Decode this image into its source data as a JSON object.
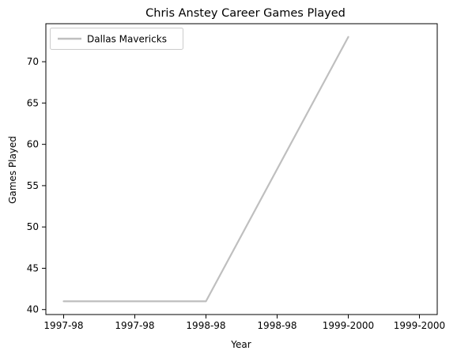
{
  "chart_data": {
    "type": "line",
    "title": "Chris Anstey Career Games Played",
    "xlabel": "Year",
    "ylabel": "Games Played",
    "categories": [
      "1997-98",
      "1997-98",
      "1998-98",
      "1998-98",
      "1999-2000",
      "1999-2000"
    ],
    "series": [
      {
        "name": "Dallas Mavericks",
        "x": [
          0,
          2,
          4
        ],
        "values": [
          41,
          41,
          73
        ],
        "color": "#bfbfbf"
      }
    ],
    "yticks": [
      40,
      45,
      50,
      55,
      60,
      65,
      70
    ],
    "ylim": [
      39.4,
      74.6
    ],
    "xlim": [
      -0.25,
      5.25
    ],
    "grid": false,
    "legend_position": "top-left"
  }
}
